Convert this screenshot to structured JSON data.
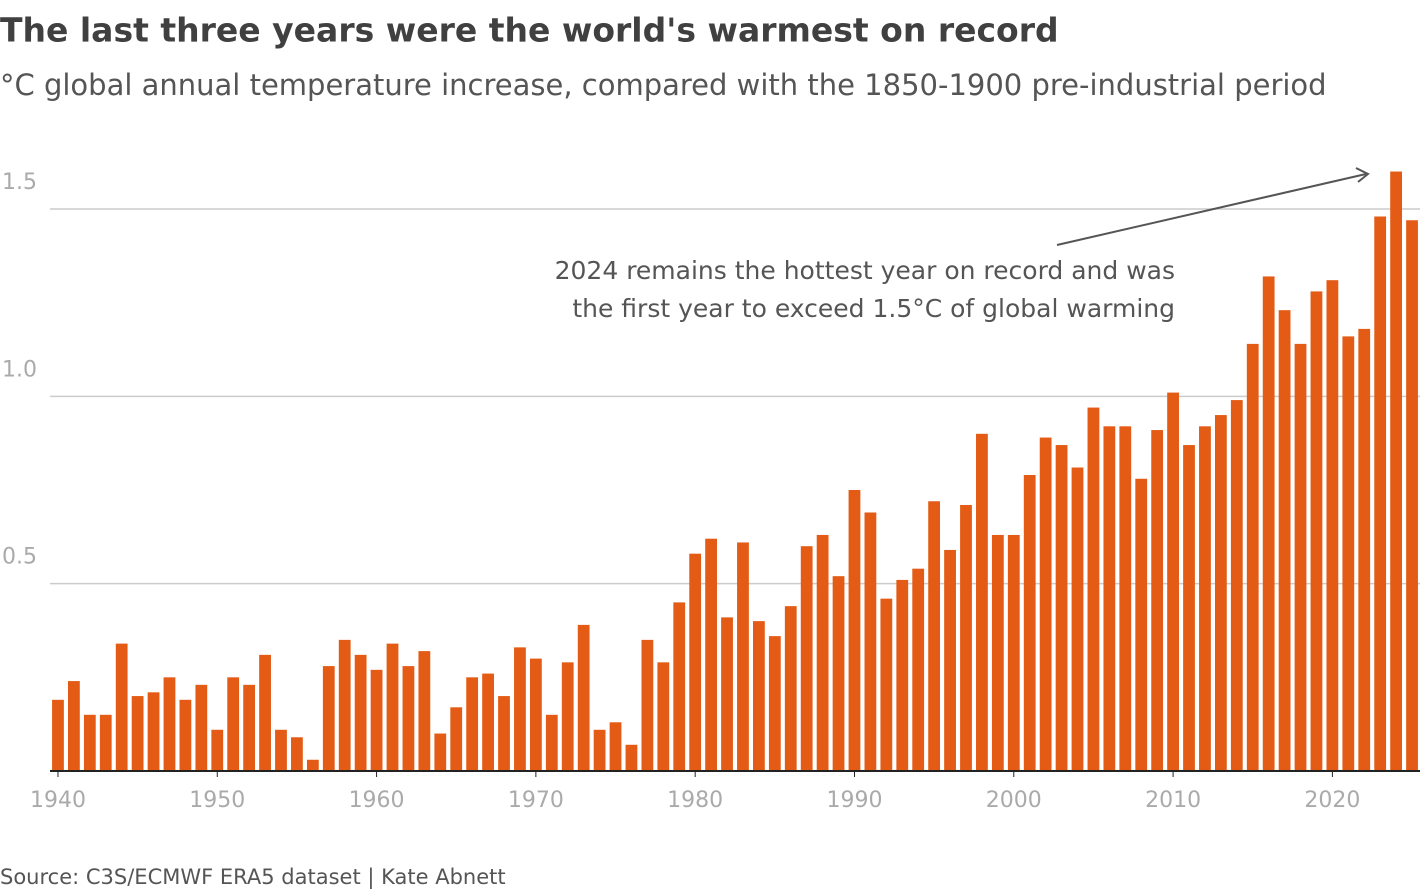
{
  "chart_data": {
    "type": "bar",
    "title": "The last three years were the world's warmest on record",
    "subtitle": "°C global annual temperature increase, compared with the 1850-1900 pre-industrial period",
    "source": "Source: C3S/ECMWF ERA5 dataset | Kate Abnett",
    "annotation": [
      "2024 remains the hottest year on record and was",
      "the first year to exceed 1.5°C of global warming"
    ],
    "color": "#e35b14",
    "x": [
      1940,
      1941,
      1942,
      1943,
      1944,
      1945,
      1946,
      1947,
      1948,
      1949,
      1950,
      1951,
      1952,
      1953,
      1954,
      1955,
      1956,
      1957,
      1958,
      1959,
      1960,
      1961,
      1962,
      1963,
      1964,
      1965,
      1966,
      1967,
      1968,
      1969,
      1970,
      1971,
      1972,
      1973,
      1974,
      1975,
      1976,
      1977,
      1978,
      1979,
      1980,
      1981,
      1982,
      1983,
      1984,
      1985,
      1986,
      1987,
      1988,
      1989,
      1990,
      1991,
      1992,
      1993,
      1994,
      1995,
      1996,
      1997,
      1998,
      1999,
      2000,
      2001,
      2002,
      2003,
      2004,
      2005,
      2006,
      2007,
      2008,
      2009,
      2010,
      2011,
      2012,
      2013,
      2014,
      2015,
      2016,
      2017,
      2018,
      2019,
      2020,
      2021,
      2022,
      2023,
      2024,
      2025
    ],
    "values": [
      0.19,
      0.24,
      0.15,
      0.15,
      0.34,
      0.2,
      0.21,
      0.25,
      0.19,
      0.23,
      0.11,
      0.25,
      0.23,
      0.31,
      0.11,
      0.09,
      0.03,
      0.28,
      0.35,
      0.31,
      0.27,
      0.34,
      0.28,
      0.32,
      0.1,
      0.17,
      0.25,
      0.26,
      0.2,
      0.33,
      0.3,
      0.15,
      0.29,
      0.39,
      0.11,
      0.13,
      0.07,
      0.35,
      0.29,
      0.45,
      0.58,
      0.62,
      0.41,
      0.61,
      0.4,
      0.36,
      0.44,
      0.6,
      0.63,
      0.52,
      0.75,
      0.69,
      0.46,
      0.51,
      0.54,
      0.72,
      0.59,
      0.71,
      0.9,
      0.63,
      0.63,
      0.79,
      0.89,
      0.87,
      0.81,
      0.97,
      0.92,
      0.92,
      0.78,
      0.91,
      1.01,
      0.87,
      0.92,
      0.95,
      0.99,
      1.14,
      1.32,
      1.23,
      1.14,
      1.28,
      1.31,
      1.16,
      1.18,
      1.48,
      1.6,
      1.47
    ],
    "xlim": [
      1939.5,
      2025.5
    ],
    "xticks": [
      1940,
      1950,
      1960,
      1970,
      1980,
      1990,
      2000,
      2010,
      2020
    ],
    "ylim": [
      0,
      1.6
    ],
    "yticks": [
      {
        "value": 0.5,
        "label": "0.5"
      },
      {
        "value": 1,
        "label": "1.0"
      },
      1.5
    ],
    "grid": true
  }
}
